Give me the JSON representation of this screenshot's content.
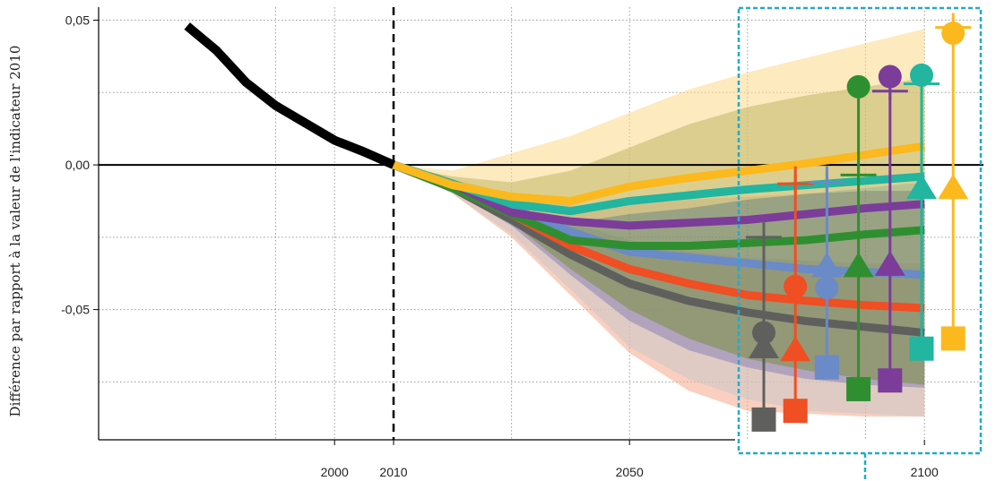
{
  "chart_data": {
    "type": "line",
    "ylabel": "Différence par rapport à la valeur de l'indicateur 2010",
    "xlabel": "",
    "xlim": [
      1960,
      2110
    ],
    "ylim": [
      -0.095,
      0.0545
    ],
    "x_tick_labels": [
      {
        "value": 2000,
        "label": "2000"
      },
      {
        "value": 2010,
        "label": "2010"
      },
      {
        "value": 2050,
        "label": "2050"
      },
      {
        "value": 2100,
        "label": "2100"
      }
    ],
    "y_tick_labels": [
      {
        "value": 0.05,
        "label": "0,05"
      },
      {
        "value": 0.0,
        "label": "0,00"
      },
      {
        "value": -0.05,
        "label": "-0,05"
      }
    ],
    "grid": true,
    "reference_year": 2010,
    "historical": {
      "color": "#000000",
      "x": [
        1975,
        1980,
        1985,
        1990,
        1995,
        2000,
        2005,
        2010
      ],
      "y": [
        0.048,
        0.0395,
        0.0285,
        0.0205,
        0.0145,
        0.0085,
        0.0045,
        0.0
      ]
    },
    "projections": {
      "x": [
        2010,
        2020,
        2030,
        2040,
        2050,
        2060,
        2070,
        2080,
        2090,
        2100
      ],
      "series": [
        {
          "color": "#5f605e",
          "y": [
            0.0,
            -0.008,
            -0.019,
            -0.031,
            -0.041,
            -0.047,
            -0.051,
            -0.054,
            -0.056,
            -0.058
          ]
        },
        {
          "color": "#f04e23",
          "y": [
            0.0,
            -0.008,
            -0.017,
            -0.028,
            -0.036,
            -0.041,
            -0.045,
            -0.047,
            -0.0485,
            -0.0495
          ]
        },
        {
          "color": "#6a8ac8",
          "y": [
            0.0,
            -0.008,
            -0.015,
            -0.023,
            -0.03,
            -0.032,
            -0.034,
            -0.036,
            -0.037,
            -0.038
          ]
        },
        {
          "color": "#2f8f30",
          "y": [
            0.0,
            -0.008,
            -0.017,
            -0.026,
            -0.028,
            -0.028,
            -0.027,
            -0.026,
            -0.024,
            -0.0225
          ]
        },
        {
          "color": "#7b3d99",
          "y": [
            0.0,
            -0.0065,
            -0.0165,
            -0.0195,
            -0.021,
            -0.02,
            -0.019,
            -0.017,
            -0.015,
            -0.0135
          ]
        },
        {
          "color": "#22b5a0",
          "y": [
            0.0,
            -0.0065,
            -0.0135,
            -0.016,
            -0.0125,
            -0.0105,
            -0.0085,
            -0.007,
            -0.0055,
            -0.004
          ]
        },
        {
          "color": "#fbb91e",
          "y": [
            0.0,
            -0.007,
            -0.011,
            -0.0125,
            -0.0075,
            -0.0045,
            -0.002,
            0.0005,
            0.0035,
            0.0065
          ]
        }
      ],
      "bands": [
        {
          "color": "#f6a78b",
          "lower": [
            0.0,
            -0.01,
            -0.025,
            -0.045,
            -0.065,
            -0.078,
            -0.085,
            -0.086,
            -0.087,
            -0.087
          ],
          "upper": [
            0.0,
            -0.006,
            -0.012,
            -0.022,
            -0.028,
            -0.032,
            -0.034,
            -0.035,
            -0.036,
            -0.036
          ]
        },
        {
          "color": "#c8c8c8",
          "lower": [
            0.0,
            -0.01,
            -0.024,
            -0.043,
            -0.063,
            -0.074,
            -0.081,
            -0.085,
            -0.086,
            -0.087
          ],
          "upper": [
            0.0,
            -0.006,
            -0.012,
            -0.02,
            -0.026,
            -0.03,
            -0.032,
            -0.033,
            -0.034,
            -0.034
          ]
        },
        {
          "color": "#8a83b8",
          "lower": [
            0.0,
            -0.009,
            -0.021,
            -0.038,
            -0.054,
            -0.064,
            -0.07,
            -0.074,
            -0.076,
            -0.077
          ],
          "upper": [
            0.0,
            -0.005,
            -0.01,
            -0.014,
            -0.014,
            -0.012,
            -0.011,
            -0.01,
            -0.009,
            -0.009
          ]
        },
        {
          "color": "#7a8f3e",
          "lower": [
            0.0,
            -0.009,
            -0.02,
            -0.036,
            -0.05,
            -0.06,
            -0.067,
            -0.071,
            -0.074,
            -0.076
          ],
          "upper": [
            0.0,
            -0.004,
            -0.006,
            -0.002,
            0.006,
            0.014,
            0.02,
            0.024,
            0.027,
            0.03
          ]
        },
        {
          "color": "#fbd98a",
          "lower": [
            0.0,
            -0.008,
            -0.016,
            -0.02,
            -0.017,
            -0.015,
            -0.012,
            -0.01,
            -0.008,
            -0.006
          ],
          "upper": [
            0.0,
            -0.002,
            0.004,
            0.01,
            0.018,
            0.026,
            0.032,
            0.037,
            0.042,
            0.047
          ]
        }
      ]
    },
    "summary_panel": {
      "border_color": "#22aacc",
      "columns": [
        {
          "color": "#5f605e",
          "range": [
            -0.0875,
            -0.0195
          ],
          "cross": -0.025,
          "circle": -0.058,
          "triangle": -0.0625,
          "square": -0.088
        },
        {
          "color": "#f04e23",
          "range": [
            -0.086,
            -0.0005
          ],
          "cross": -0.0065,
          "circle": -0.042,
          "triangle": -0.0635,
          "square": -0.085
        },
        {
          "color": "#6a8ac8",
          "range": [
            -0.071,
            -0.0005
          ],
          "cross": -0.006,
          "circle": -0.0425,
          "triangle": -0.0345,
          "square": -0.07
        },
        {
          "color": "#2f8f30",
          "range": [
            -0.078,
            0.027
          ],
          "cross": -0.0035,
          "circle": 0.027,
          "triangle": -0.0345,
          "square": -0.0775
        },
        {
          "color": "#7b3d99",
          "range": [
            -0.0745,
            0.0305
          ],
          "cross": 0.0255,
          "circle": 0.0305,
          "triangle": -0.034,
          "square": -0.0745
        },
        {
          "color": "#22b5a0",
          "range": [
            -0.064,
            0.031
          ],
          "cross": 0.028,
          "circle": 0.031,
          "triangle": -0.0075,
          "square": -0.0635
        },
        {
          "color": "#fbb91e",
          "range": [
            -0.0605,
            0.0525
          ],
          "cross": 0.0475,
          "circle": 0.0455,
          "triangle": -0.0075,
          "square": -0.06
        }
      ]
    }
  }
}
